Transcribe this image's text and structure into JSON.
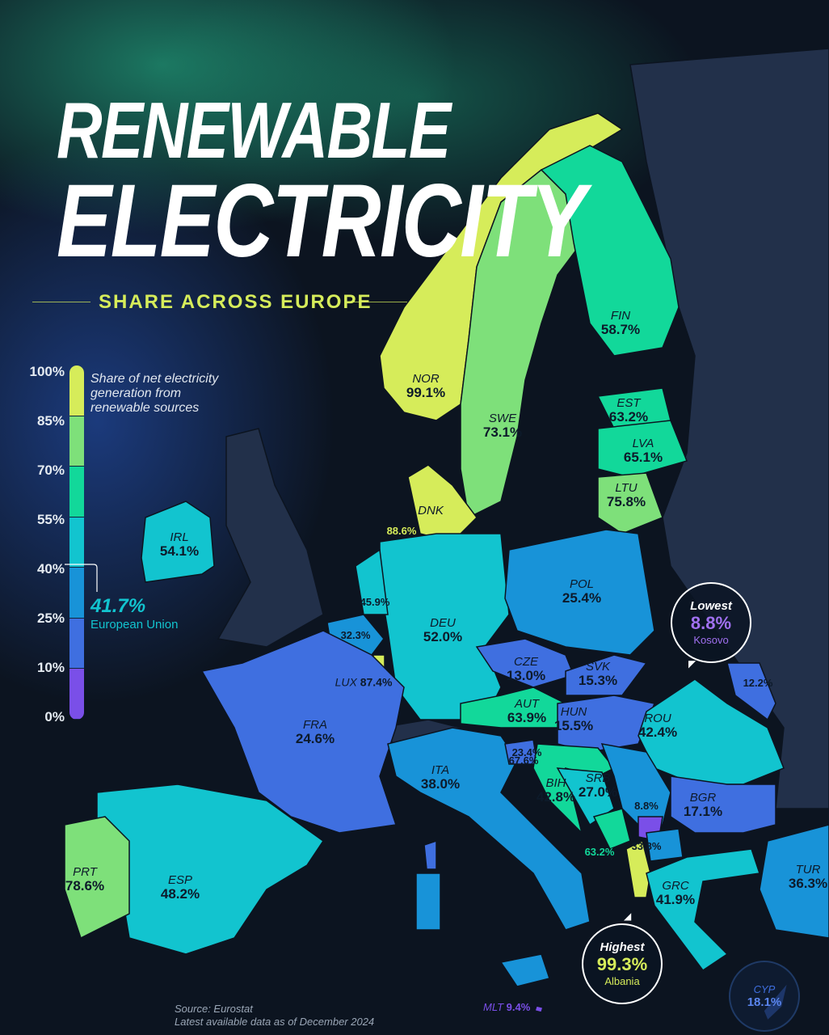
{
  "title": {
    "line1": "RENEWABLE",
    "line2": "ELECTRICITY",
    "subtitle": "SHARE ACROSS EUROPE"
  },
  "legend": {
    "description": "Share of net electricity generation from renewable sources",
    "ticks": [
      "100%",
      "85%",
      "70%",
      "55%",
      "40%",
      "25%",
      "10%",
      "0%"
    ],
    "bins": [
      {
        "range": [
          85,
          100
        ],
        "color": "#d6ec5a"
      },
      {
        "range": [
          70,
          85
        ],
        "color": "#7ee07a"
      },
      {
        "range": [
          55,
          70
        ],
        "color": "#12d89a"
      },
      {
        "range": [
          40,
          55
        ],
        "color": "#12c4cf"
      },
      {
        "range": [
          25,
          40
        ],
        "color": "#1893d8"
      },
      {
        "range": [
          10,
          25
        ],
        "color": "#3f6fe0"
      },
      {
        "range": [
          0,
          10
        ],
        "color": "#7a4fe8"
      }
    ],
    "eu_value": "41.7%",
    "eu_label": "European Union"
  },
  "countries": {
    "NOR": {
      "code": "NOR",
      "value": "99.1%"
    },
    "SWE": {
      "code": "SWE",
      "value": "73.1%"
    },
    "FIN": {
      "code": "FIN",
      "value": "58.7%"
    },
    "EST": {
      "code": "EST",
      "value": "63.2%"
    },
    "LVA": {
      "code": "LVA",
      "value": "65.1%"
    },
    "LTU": {
      "code": "LTU",
      "value": "75.8%"
    },
    "DNK": {
      "code": "DNK",
      "value": "88.6%"
    },
    "IRL": {
      "code": "IRL",
      "value": "54.1%"
    },
    "NLD": {
      "value": "45.9%"
    },
    "BEL": {
      "value": "32.3%"
    },
    "LUX": {
      "code": "LUX",
      "value": "87.4%"
    },
    "DEU": {
      "code": "DEU",
      "value": "52.0%"
    },
    "POL": {
      "code": "POL",
      "value": "25.4%"
    },
    "CZE": {
      "code": "CZE",
      "value": "13.0%"
    },
    "SVK": {
      "code": "SVK",
      "value": "15.3%"
    },
    "AUT": {
      "code": "AUT",
      "value": "63.9%"
    },
    "HUN": {
      "code": "HUN",
      "value": "15.5%"
    },
    "MDA": {
      "value": "12.2%"
    },
    "ROU": {
      "code": "ROU",
      "value": "42.4%"
    },
    "FRA": {
      "code": "FRA",
      "value": "24.6%"
    },
    "SVN": {
      "value": "23.4%"
    },
    "HRV": {
      "value": "67.6%"
    },
    "ITA": {
      "code": "ITA",
      "value": "38.0%"
    },
    "BIH": {
      "code": "BIH",
      "value": "42.8%"
    },
    "SRB": {
      "code": "SRB",
      "value": "27.0%"
    },
    "XKX": {
      "value": "8.8%"
    },
    "MNE": {
      "value": "63.2%"
    },
    "MKD": {
      "value": "33.8%"
    },
    "BGR": {
      "code": "BGR",
      "value": "17.1%"
    },
    "GRC": {
      "code": "GRC",
      "value": "41.9%"
    },
    "TUR": {
      "code": "TUR",
      "value": "36.3%"
    },
    "ESP": {
      "code": "ESP",
      "value": "48.2%"
    },
    "PRT": {
      "code": "PRT",
      "value": "78.6%"
    },
    "MLT": {
      "code": "MLT",
      "value": "9.4%"
    },
    "CYP": {
      "code": "CYP",
      "value": "18.1%"
    }
  },
  "lowest": {
    "heading": "Lowest",
    "value": "8.8%",
    "country": "Kosovo",
    "color": "#a070f0"
  },
  "highest": {
    "heading": "Highest",
    "value": "99.3%",
    "country": "Albania",
    "color": "#d6ec5a"
  },
  "source": {
    "line1": "Source: Eurostat",
    "line2": "Latest available data as of December 2024"
  }
}
